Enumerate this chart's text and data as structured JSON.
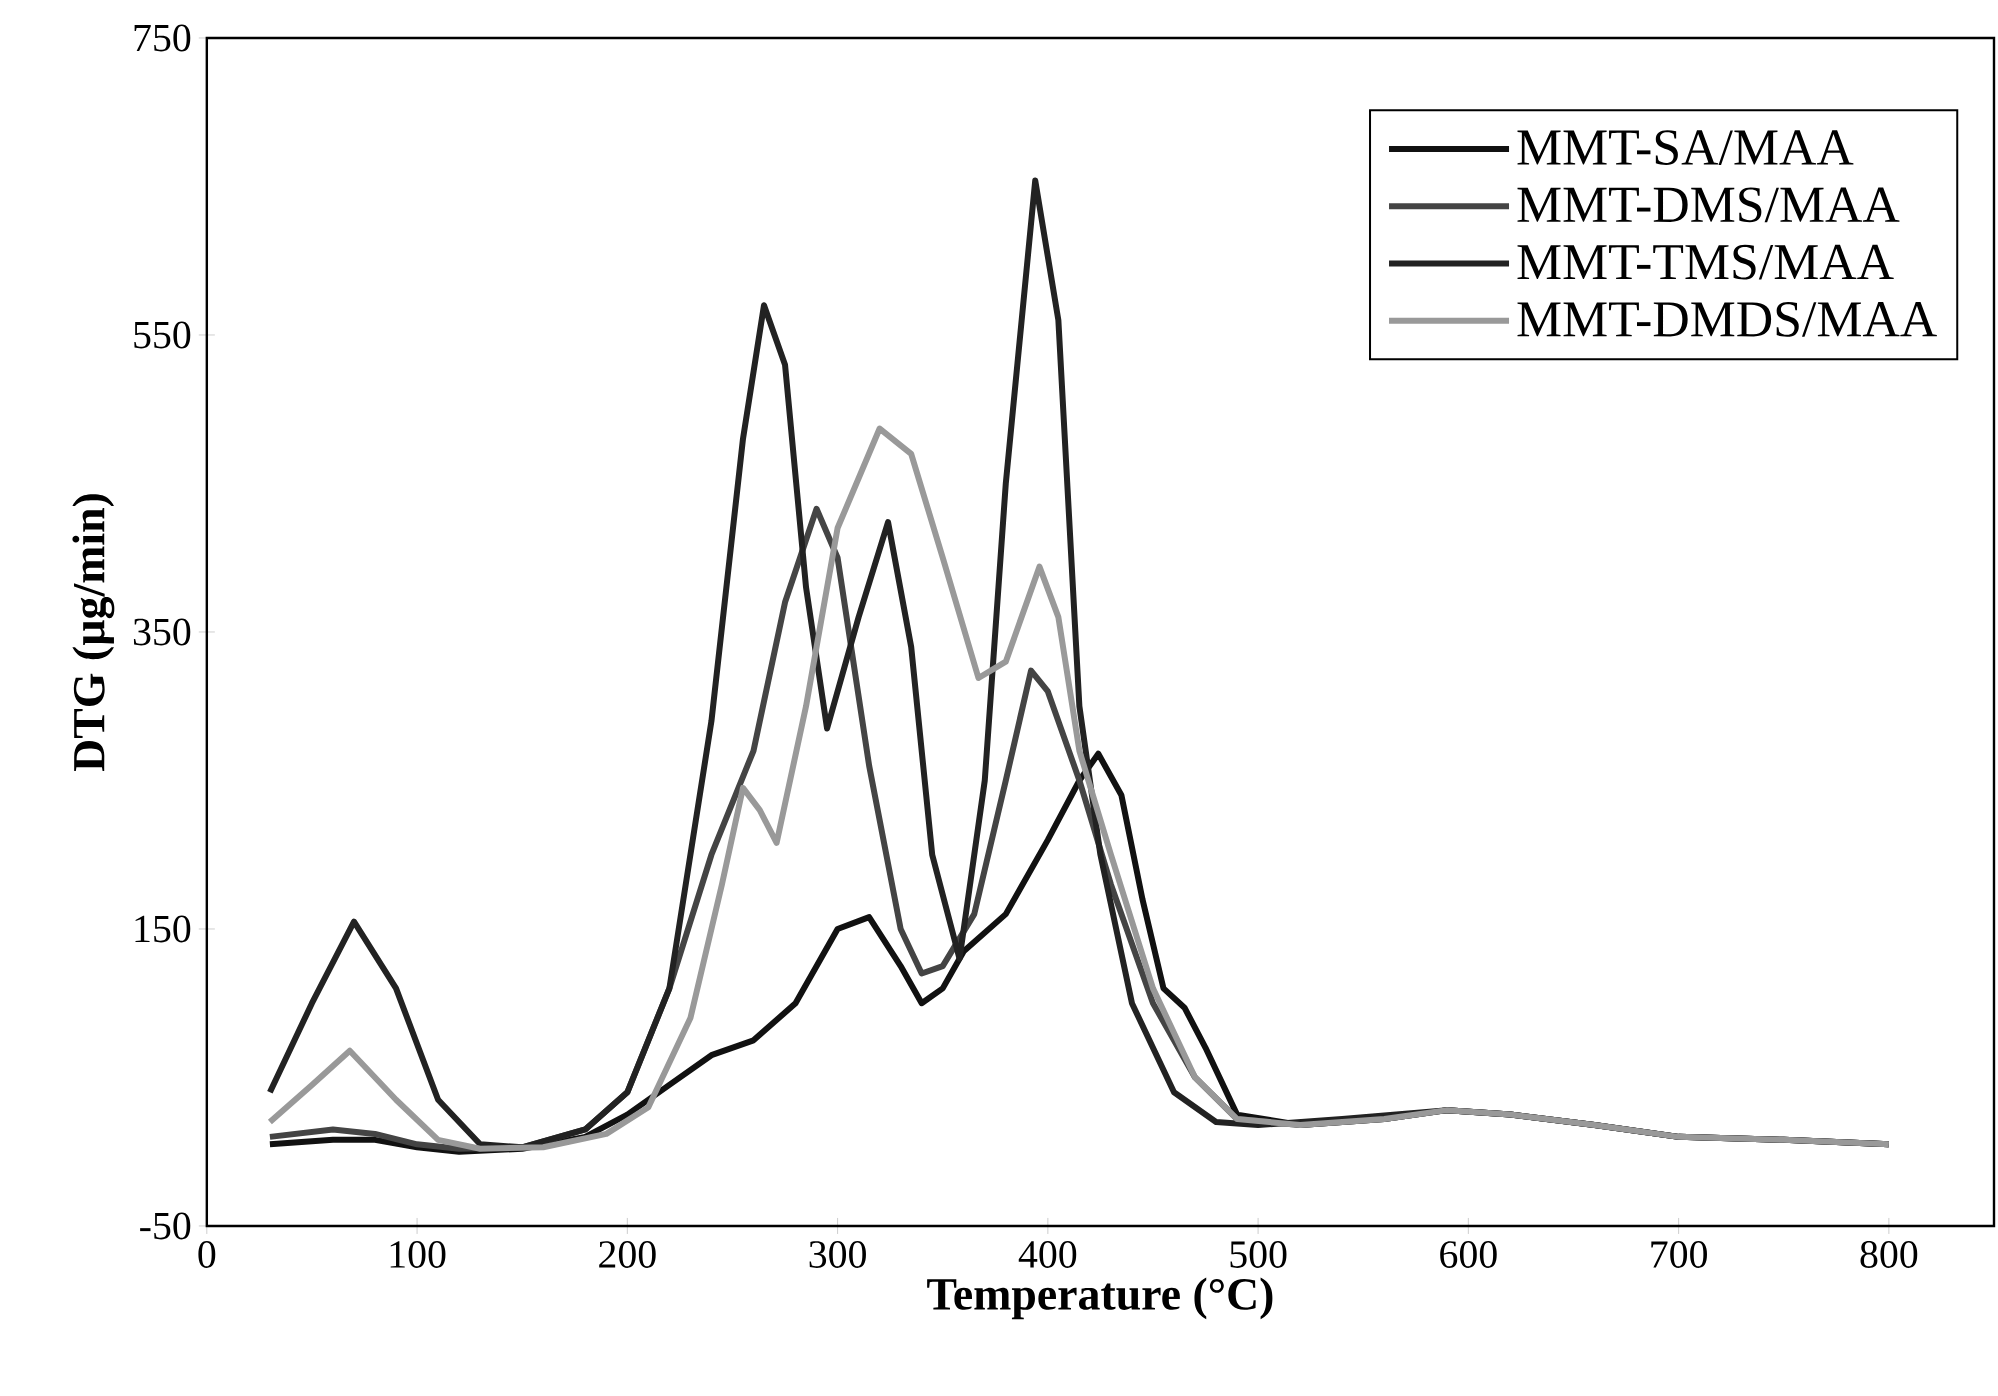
{
  "chart_data": {
    "type": "line",
    "xlabel": "Temperature (°C)",
    "ylabel": "DTG (µg/min)",
    "xlim": [
      0,
      850
    ],
    "ylim": [
      -50,
      750
    ],
    "xticks": [
      0,
      100,
      200,
      300,
      400,
      500,
      600,
      700,
      800
    ],
    "yticks": [
      -50,
      150,
      350,
      550,
      750
    ],
    "legend": "top right",
    "grid": false,
    "series": [
      {
        "name": "MMT-SA/MAA",
        "color": "#111111",
        "x": [
          30,
          60,
          80,
          100,
          120,
          150,
          180,
          200,
          220,
          240,
          260,
          280,
          300,
          315,
          330,
          340,
          350,
          360,
          380,
          400,
          415,
          424,
          435,
          445,
          455,
          465,
          475,
          490,
          520,
          560,
          590,
          620,
          660,
          700,
          750,
          800
        ],
        "values": [
          5,
          8,
          8,
          3,
          0,
          2,
          10,
          25,
          45,
          65,
          75,
          100,
          150,
          158,
          125,
          100,
          110,
          135,
          160,
          210,
          250,
          268,
          240,
          170,
          110,
          97,
          70,
          25,
          18,
          22,
          28,
          25,
          18,
          10,
          8,
          5
        ]
      },
      {
        "name": "MMT-DMS/MAA",
        "color": "#444444",
        "x": [
          30,
          60,
          80,
          100,
          120,
          150,
          180,
          200,
          220,
          240,
          260,
          275,
          290,
          300,
          315,
          330,
          340,
          350,
          365,
          380,
          392,
          400,
          415,
          430,
          450,
          470,
          490,
          520,
          560,
          590,
          620,
          660,
          700,
          750,
          800
        ],
        "values": [
          10,
          15,
          12,
          5,
          2,
          3,
          15,
          40,
          110,
          200,
          270,
          370,
          433,
          400,
          260,
          150,
          120,
          125,
          160,
          250,
          324,
          310,
          250,
          180,
          100,
          50,
          22,
          18,
          22,
          28,
          25,
          18,
          10,
          8,
          5
        ]
      },
      {
        "name": "MMT-TMS/MAA",
        "color": "#222222",
        "x": [
          30,
          50,
          70,
          90,
          110,
          130,
          150,
          180,
          200,
          220,
          240,
          255,
          265,
          275,
          285,
          295,
          310,
          324,
          335,
          345,
          358,
          370,
          380,
          394,
          405,
          415,
          425,
          440,
          460,
          480,
          500,
          540,
          590,
          620,
          660,
          700,
          750,
          800
        ],
        "values": [
          40,
          100,
          155,
          110,
          35,
          5,
          3,
          15,
          40,
          110,
          290,
          480,
          570,
          530,
          380,
          285,
          360,
          424,
          340,
          200,
          130,
          250,
          450,
          654,
          560,
          300,
          200,
          100,
          40,
          20,
          18,
          22,
          28,
          25,
          18,
          10,
          8,
          5
        ]
      },
      {
        "name": "MMT-DMDS/MAA",
        "color": "#999999",
        "x": [
          30,
          50,
          68,
          90,
          110,
          130,
          160,
          190,
          210,
          230,
          245,
          255,
          263,
          271,
          285,
          300,
          320,
          335,
          350,
          367,
          380,
          396,
          405,
          415,
          430,
          450,
          470,
          490,
          520,
          560,
          590,
          620,
          660,
          700,
          750,
          800
        ],
        "values": [
          20,
          45,
          68,
          35,
          8,
          2,
          3,
          12,
          30,
          90,
          180,
          245,
          230,
          208,
          300,
          420,
          487,
          470,
          400,
          319,
          330,
          394,
          360,
          270,
          200,
          110,
          50,
          22,
          18,
          22,
          28,
          25,
          18,
          10,
          8,
          5
        ]
      }
    ]
  }
}
